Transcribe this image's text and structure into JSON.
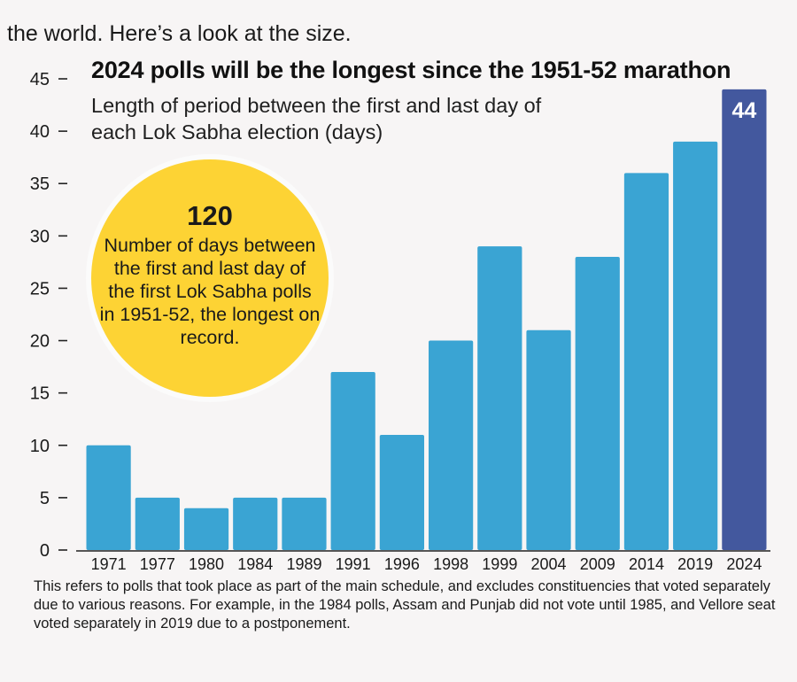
{
  "intro_text": "the world. Here’s a look at the size.",
  "chart_data": {
    "type": "bar",
    "title": "2024 polls will be the longest since the 1951-52 marathon",
    "subtitle": "Length of period between the first and last day of each Lok Sabha election (days)",
    "categories": [
      "1971",
      "1977",
      "1980",
      "1984",
      "1989",
      "1991",
      "1996",
      "1998",
      "1999",
      "2004",
      "2009",
      "2014",
      "2019",
      "2024"
    ],
    "values": [
      10,
      5,
      4,
      5,
      5,
      17,
      11,
      20,
      29,
      21,
      28,
      36,
      39,
      44
    ],
    "highlight_index": 13,
    "highlight_label": "44",
    "ylim": [
      0,
      45
    ],
    "yticks": [
      0,
      5,
      10,
      15,
      20,
      25,
      30,
      35,
      40,
      45
    ],
    "xlabel": "",
    "ylabel": "",
    "grid": false,
    "colors": {
      "bar": "#3aa4d3",
      "highlight": "#43589e",
      "axis": "#222222"
    },
    "annotation": {
      "value": "120",
      "text": "Number of days between the first and last day of the first Lok Sabha polls in 1951-52, the longest on record.",
      "color": "#fdd334"
    }
  },
  "footnote": "This refers to polls that took place as part of the main schedule, and excludes constituencies that voted separately due to various reasons. For example, in the 1984 polls, Assam and Punjab did not vote until 1985, and Vellore seat voted separately in 2019 due to a postponement."
}
